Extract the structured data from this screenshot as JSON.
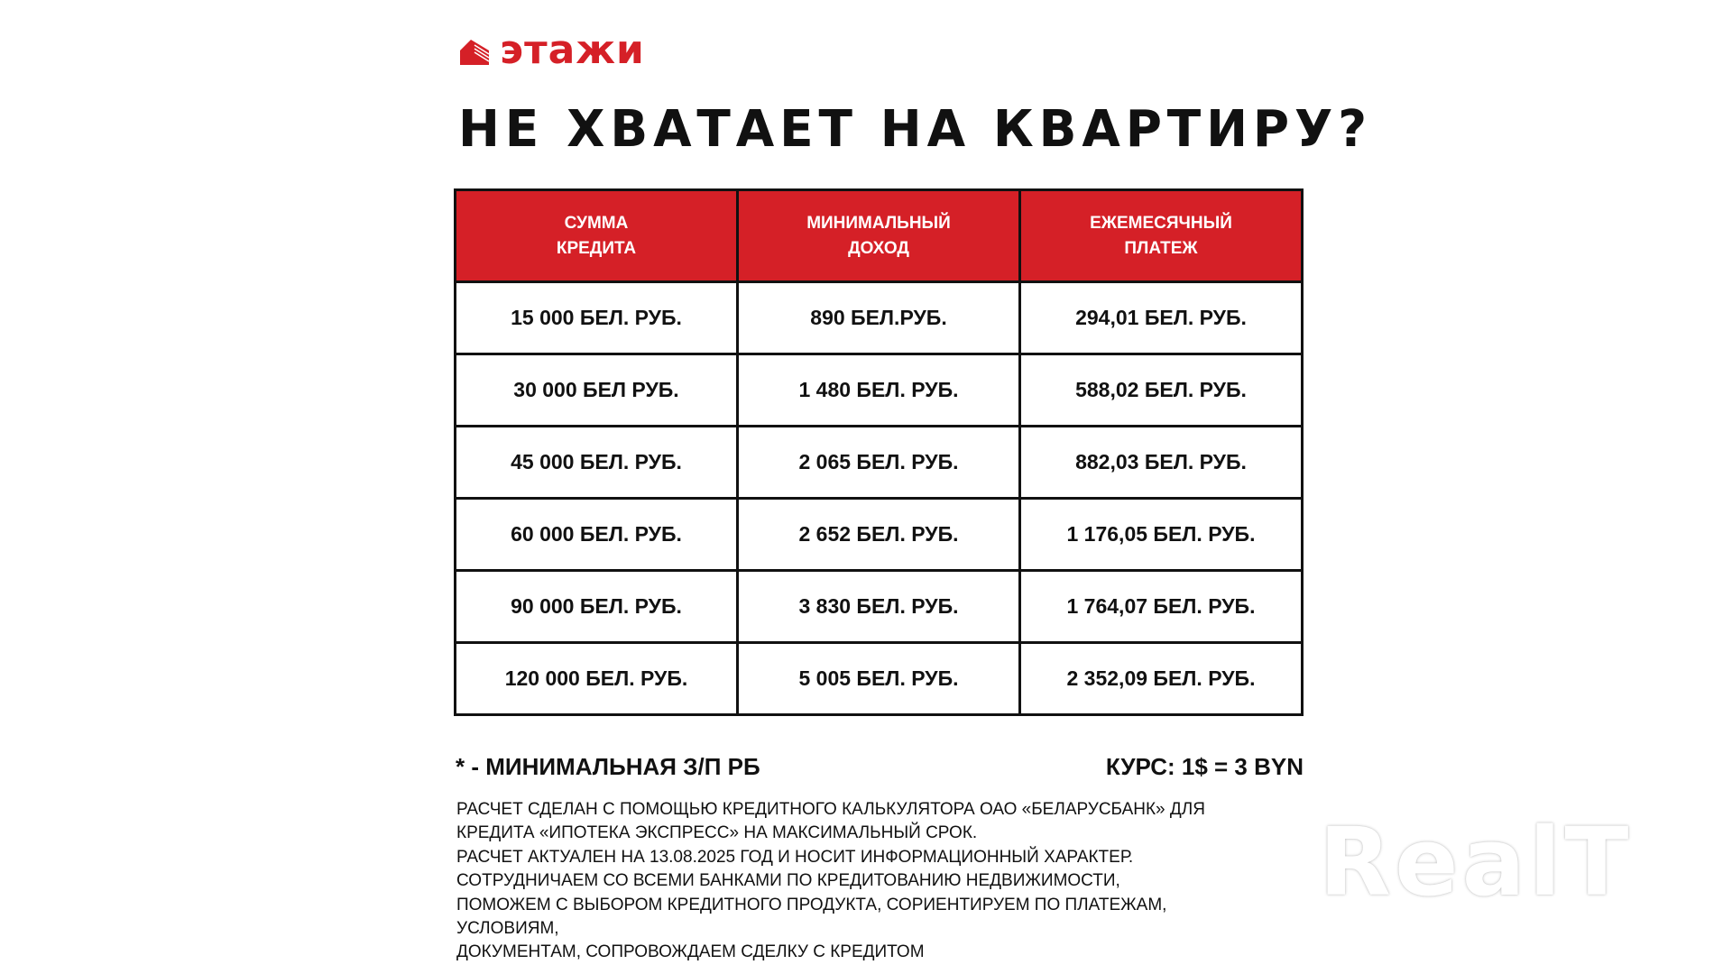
{
  "logo": {
    "text": "этажи",
    "color": "#d52027",
    "icon": "building-icon"
  },
  "title": "НЕ ХВАТАЕТ НА КВАРТИРУ?",
  "table": {
    "headers": [
      [
        "СУММА",
        "КРЕДИТА"
      ],
      [
        "МИНИМАЛЬНЫЙ",
        "ДОХОД"
      ],
      [
        "ЕЖЕМЕСЯЧНЫЙ",
        "ПЛАТЕЖ"
      ]
    ],
    "header_color": "#d52027",
    "rows": [
      [
        "15 000 БЕЛ. РУБ.",
        "890 БЕЛ.РУБ.",
        "294,01 БЕЛ. РУБ."
      ],
      [
        "30 000 БЕЛ РУБ.",
        "1 480 БЕЛ. РУБ.",
        "588,02 БЕЛ. РУБ."
      ],
      [
        "45 000 БЕЛ. РУБ.",
        "2 065 БЕЛ. РУБ.",
        "882,03 БЕЛ. РУБ."
      ],
      [
        "60 000 БЕЛ. РУБ.",
        "2 652 БЕЛ. РУБ.",
        "1 176,05 БЕЛ. РУБ."
      ],
      [
        "90 000 БЕЛ. РУБ.",
        "3 830 БЕЛ. РУБ.",
        "1 764,07 БЕЛ. РУБ."
      ],
      [
        "120 000 БЕЛ. РУБ.",
        "5 005 БЕЛ. РУБ.",
        "2 352,09 БЕЛ. РУБ."
      ]
    ]
  },
  "footnote": "* - МИНИМАЛЬНАЯ З/П РБ",
  "rate": "КУРС: 1$ = 3 BYN",
  "notes": [
    "РАСЧЕТ СДЕЛАН С ПОМОЩЬЮ КРЕДИТНОГО КАЛЬКУЛЯТОРА ОАО «БЕЛАРУСБАНК» ДЛЯ",
    "КРЕДИТА «ИПОТЕКА ЭКСПРЕСС» НА МАКСИМАЛЬНЫЙ СРОК.",
    "РАСЧЕТ АКТУАЛЕН НА 13.08.2025 ГОД И НОСИТ ИНФОРМАЦИОННЫЙ ХАРАКТЕР.",
    "СОТРУДНИЧАЕМ СО ВСЕМИ БАНКАМИ ПО КРЕДИТОВАНИЮ НЕДВИЖИМОСТИ,",
    "ПОМОЖЕМ С ВЫБОРОМ КРЕДИТНОГО ПРОДУКТА, СОРИЕНТИРУЕМ ПО ПЛАТЕЖАМ,",
    "УСЛОВИЯМ,",
    "ДОКУМЕНТАМ, СОПРОВОЖДАЕМ СДЕЛКУ С КРЕДИТОМ"
  ],
  "watermark": "RealT"
}
